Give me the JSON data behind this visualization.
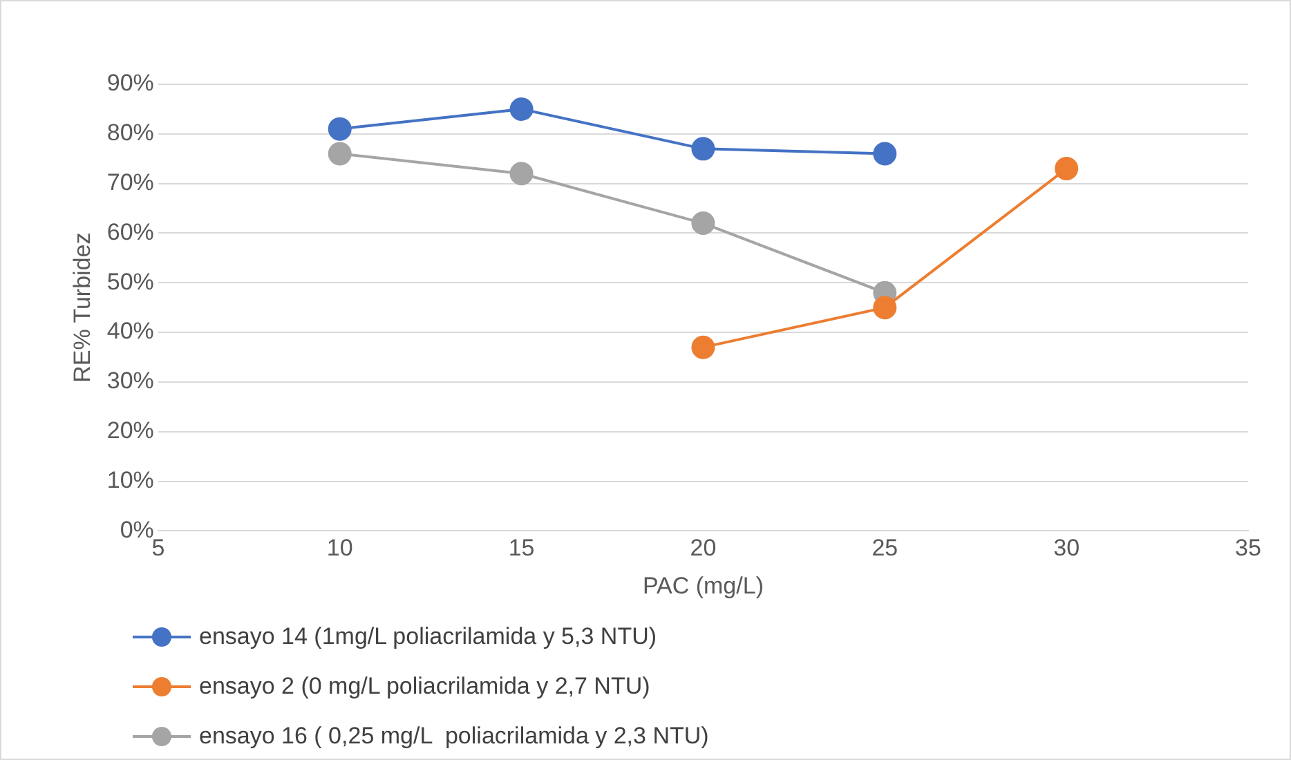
{
  "chart_data": {
    "type": "line",
    "xlabel": "PAC (mg/L)",
    "ylabel": "RE% Turbidez",
    "xlim": [
      5,
      35
    ],
    "xticks": [
      5,
      10,
      15,
      20,
      25,
      30,
      35
    ],
    "ylim": [
      0,
      90
    ],
    "yticks": [
      {
        "value": 0,
        "label": "0%"
      },
      {
        "value": 10,
        "label": "10%"
      },
      {
        "value": 20,
        "label": "20%"
      },
      {
        "value": 30,
        "label": "30%"
      },
      {
        "value": 40,
        "label": "40%"
      },
      {
        "value": 50,
        "label": "50%"
      },
      {
        "value": 60,
        "label": "60%"
      },
      {
        "value": 70,
        "label": "70%"
      },
      {
        "value": 80,
        "label": "80%"
      },
      {
        "value": 90,
        "label": "90%"
      }
    ],
    "grid": "y",
    "legend": "bottom",
    "marker": "circle",
    "line_style": "solid",
    "series": [
      {
        "name": "ensayo 14 (1mg/L poliacrilamida y 5,3 NTU)",
        "color": "#4472c4",
        "x": [
          10,
          15,
          20,
          25
        ],
        "values": [
          81,
          85,
          77,
          76
        ]
      },
      {
        "name": "ensayo 2 (0 mg/L poliacrilamida y 2,7 NTU)",
        "color": "#ed7d31",
        "x": [
          20,
          25,
          30
        ],
        "values": [
          37,
          45,
          73
        ]
      },
      {
        "name": "ensayo 16 ( 0,25 mg/L  poliacrilamida y 2,3 NTU)",
        "color": "#a5a5a5",
        "x": [
          10,
          15,
          20,
          25
        ],
        "values": [
          76,
          72,
          62,
          48
        ]
      }
    ]
  }
}
